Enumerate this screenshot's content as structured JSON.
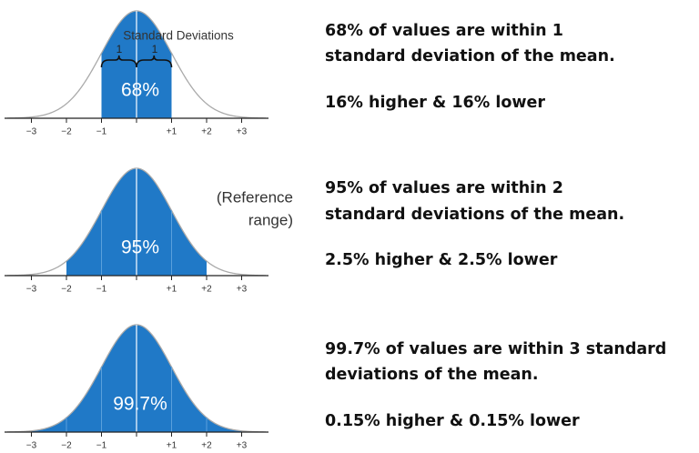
{
  "panels": [
    {
      "shaded_label": "68%",
      "annotation": "Standard Deviations",
      "brace_labels": [
        "1",
        "1"
      ],
      "tick_labels": [
        "−3",
        "−2",
        "−1",
        "+1",
        "+2",
        "+3"
      ],
      "heading_lines": [
        "68% of values are within 1",
        "standard deviation of the mean."
      ],
      "detail": "16% higher & 16% lower"
    },
    {
      "shaded_label": "95%",
      "side_note_lines": [
        "(Reference",
        "range)"
      ],
      "tick_labels": [
        "−3",
        "−2",
        "−1",
        "+1",
        "+2",
        "+3"
      ],
      "heading_lines": [
        "95% of values are within 2",
        "standard deviations of the mean."
      ],
      "detail": "2.5% higher & 2.5% lower"
    },
    {
      "shaded_label": "99.7%",
      "tick_labels": [
        "−3",
        "−2",
        "−1",
        "+1",
        "+2",
        "+3"
      ],
      "heading_lines": [
        "99.7% of values are within 3 standard",
        "deviations of the mean."
      ],
      "detail": "0.15% higher & 0.15% lower"
    }
  ]
}
